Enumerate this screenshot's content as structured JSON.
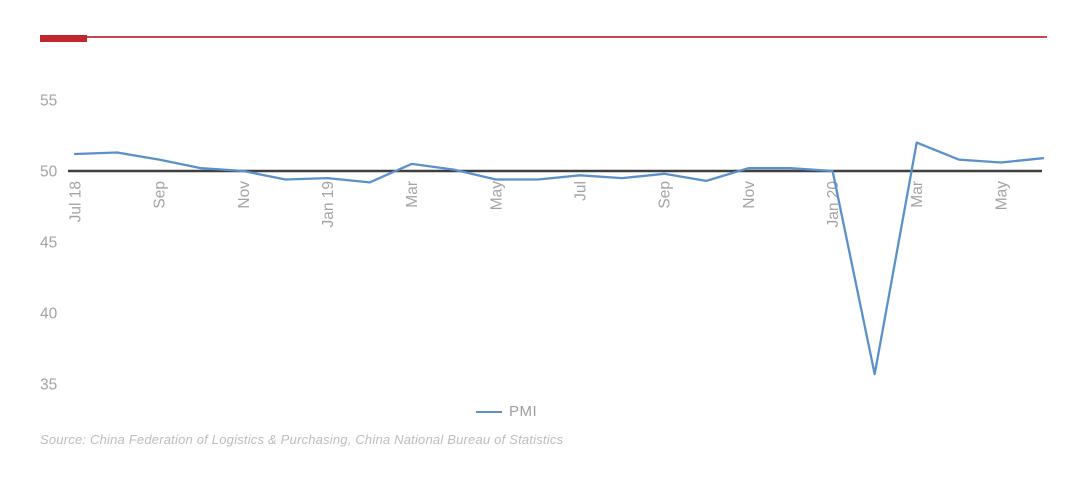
{
  "theme": {
    "accent_color": "#c0272d",
    "baseline_color": "#3f3f3f",
    "tick_color": "#a3a3a3",
    "series_blue": "#5b91c9"
  },
  "chart_data": {
    "type": "line",
    "title": "",
    "x": [
      "Jul 18",
      "Aug 18",
      "Sep 18",
      "Oct 18",
      "Nov 18",
      "Dec 18",
      "Jan 19",
      "Feb 19",
      "Mar 19",
      "Apr 19",
      "May 19",
      "Jun 19",
      "Jul 19",
      "Aug 19",
      "Sep 19",
      "Oct 19",
      "Nov 19",
      "Dec 19",
      "Jan 20",
      "Feb 20",
      "Mar 20",
      "Apr 20",
      "May 20",
      "Jun 20"
    ],
    "series": [
      {
        "name": "PMI",
        "color": "#5b91c9",
        "values": [
          51.2,
          51.3,
          50.8,
          50.2,
          50.0,
          49.4,
          49.5,
          49.2,
          50.5,
          50.1,
          49.4,
          49.4,
          49.7,
          49.5,
          49.8,
          49.3,
          50.2,
          50.2,
          50.0,
          35.7,
          52.0,
          50.8,
          50.6,
          50.9
        ]
      }
    ],
    "x_tick_labels": [
      "Jul 18",
      "Sep",
      "Nov",
      "Jan 19",
      "Mar",
      "May",
      "Jul",
      "Sep",
      "Nov",
      "Jan 20",
      "Mar",
      "May"
    ],
    "x_tick_indices": [
      0,
      2,
      4,
      6,
      8,
      10,
      12,
      14,
      16,
      18,
      20,
      22
    ],
    "y_ticks": [
      55,
      50,
      45,
      40,
      35
    ],
    "ylim": [
      33,
      57
    ],
    "baseline": 50,
    "grid": false,
    "legend_label": "PMI",
    "legend_position": "bottom-center"
  },
  "footer": {
    "source": "Source: China Federation of Logistics & Purchasing, China National Bureau of Statistics"
  }
}
